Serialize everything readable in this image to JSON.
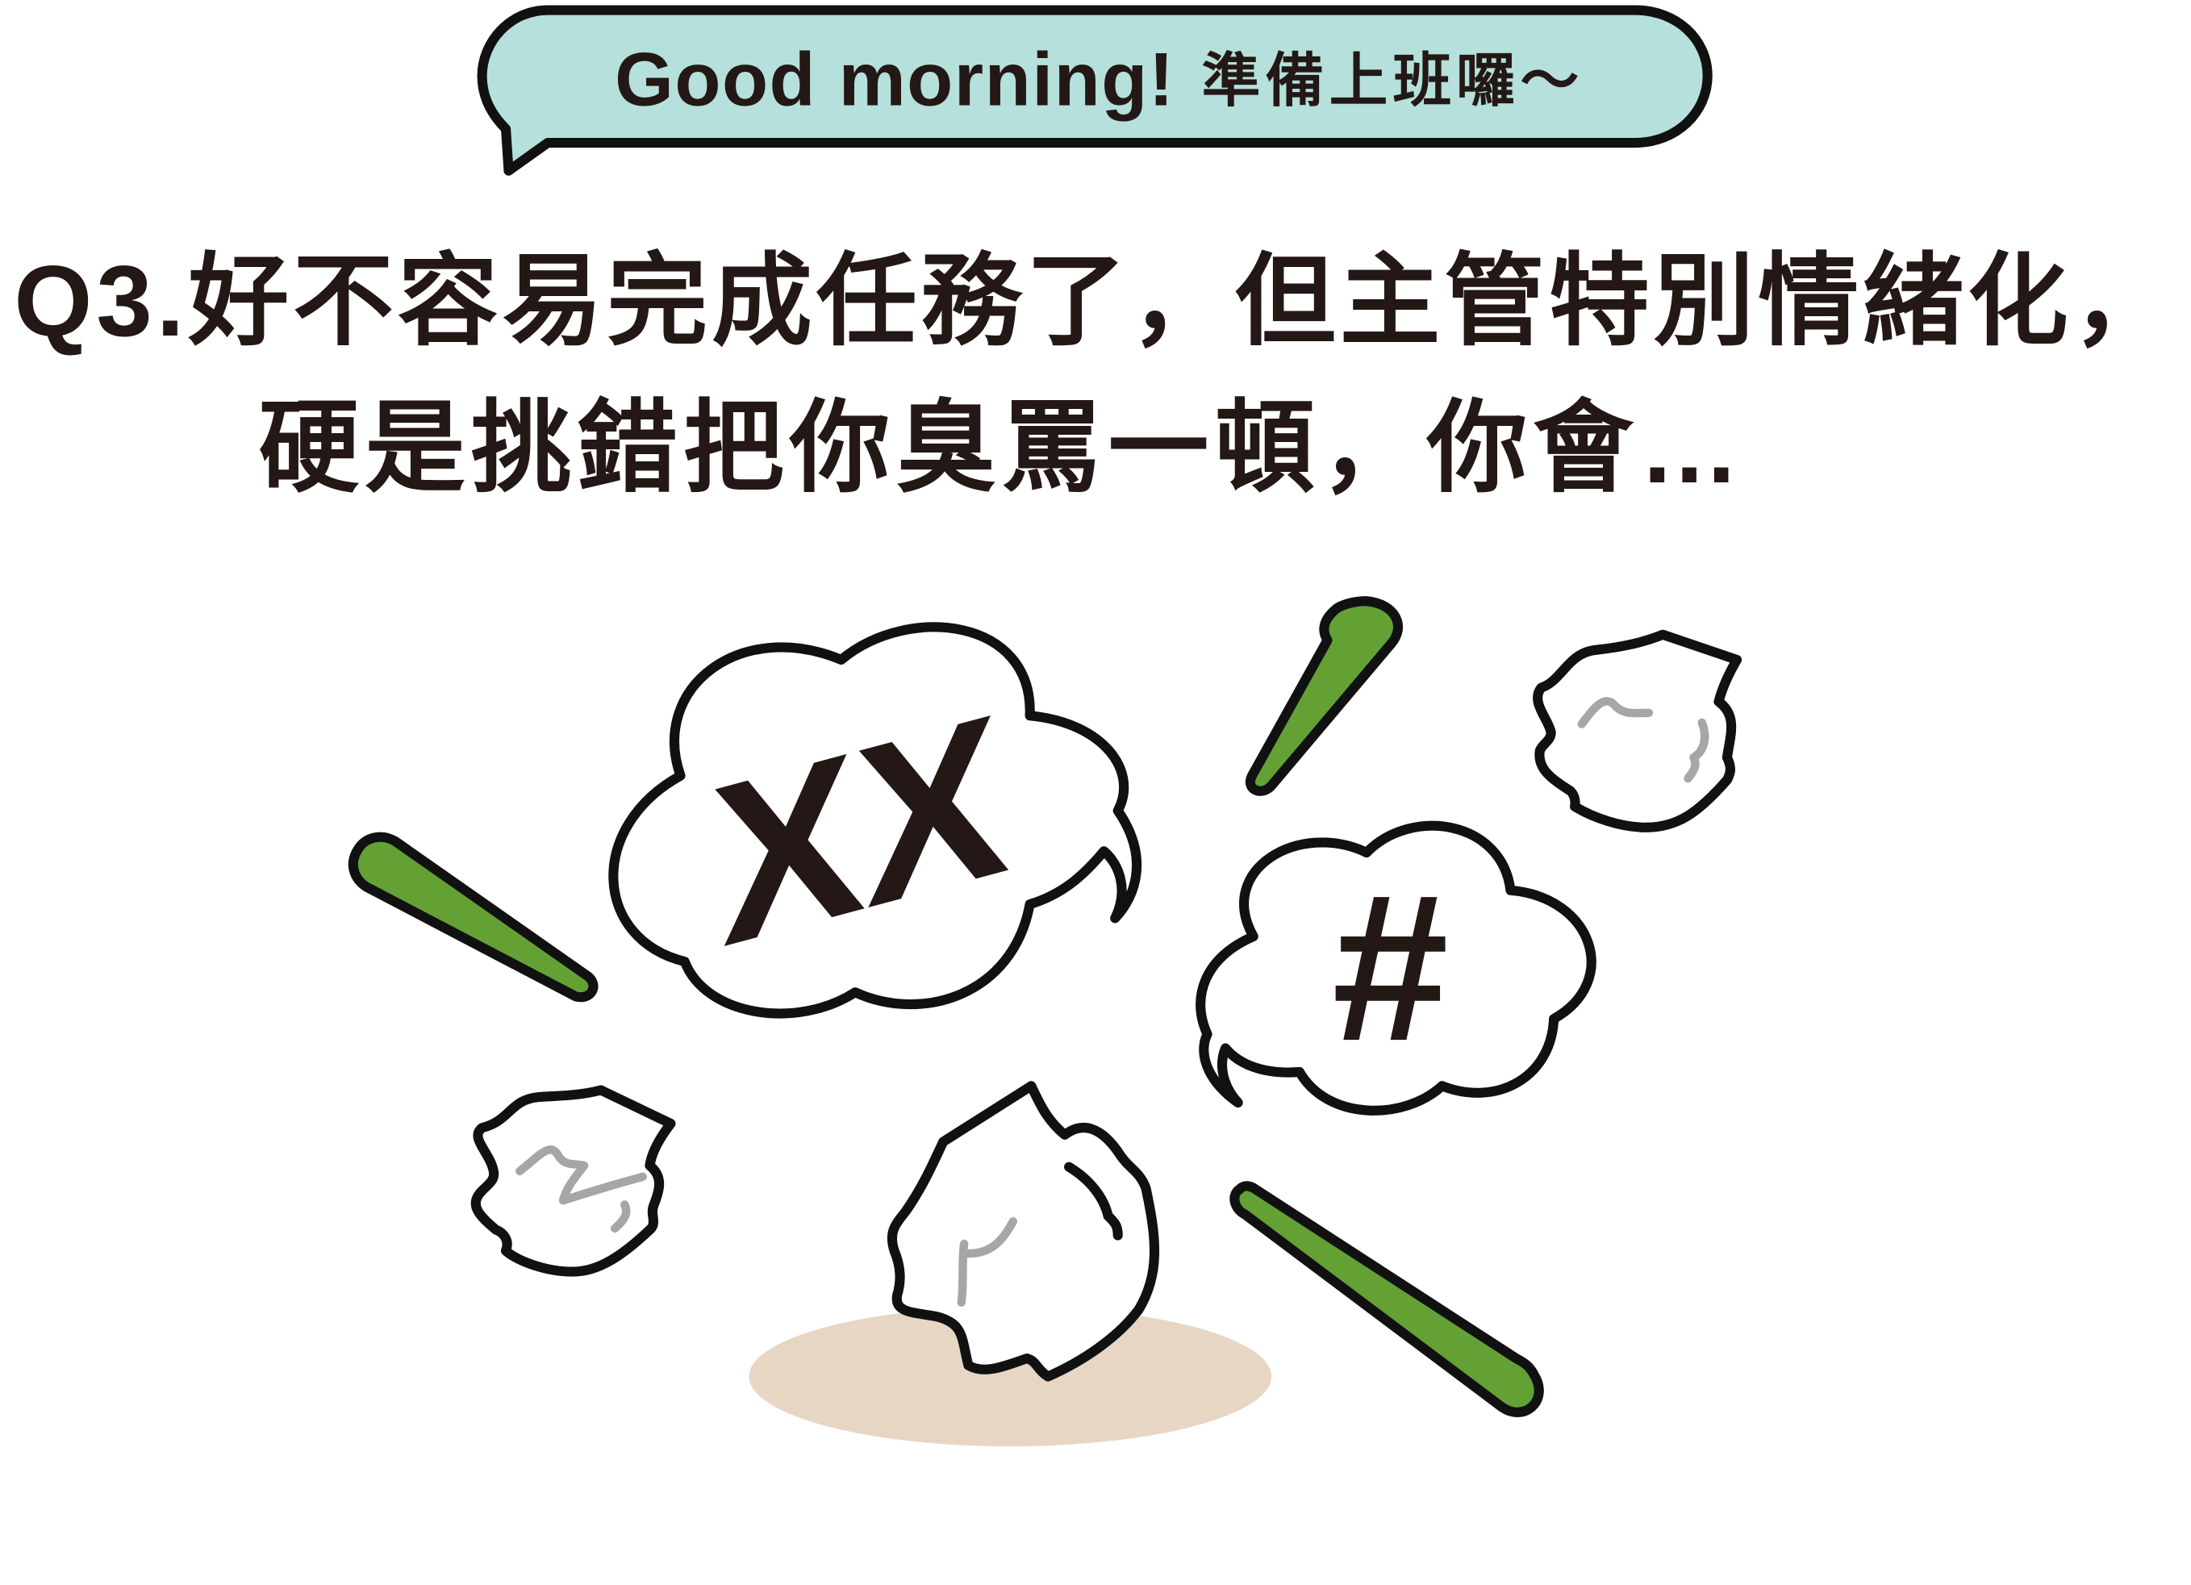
{
  "greeting_bubble": {
    "text_latin": "Good morning!",
    "text_cjk": "準備上班囉～"
  },
  "question": {
    "line1": "Q3.好不容易完成任務了，但主管特別情緒化，",
    "line2": "硬是挑錯把你臭罵一頓，你會…"
  },
  "illustration": {
    "left_cloud_text": "XX",
    "right_cloud_text": "#",
    "icons": [
      "speech-bubble-icon",
      "angry-cloud-icon",
      "green-streak-icon",
      "crumpled-paper-icon"
    ]
  },
  "colors": {
    "bubble_fill": "#b5e0dc",
    "streak_green": "#64a135",
    "shadow": "#e8d6c5",
    "scribble_gray": "#a6a6a6",
    "cloud_fill": "#ffffff",
    "text": "#231815"
  }
}
